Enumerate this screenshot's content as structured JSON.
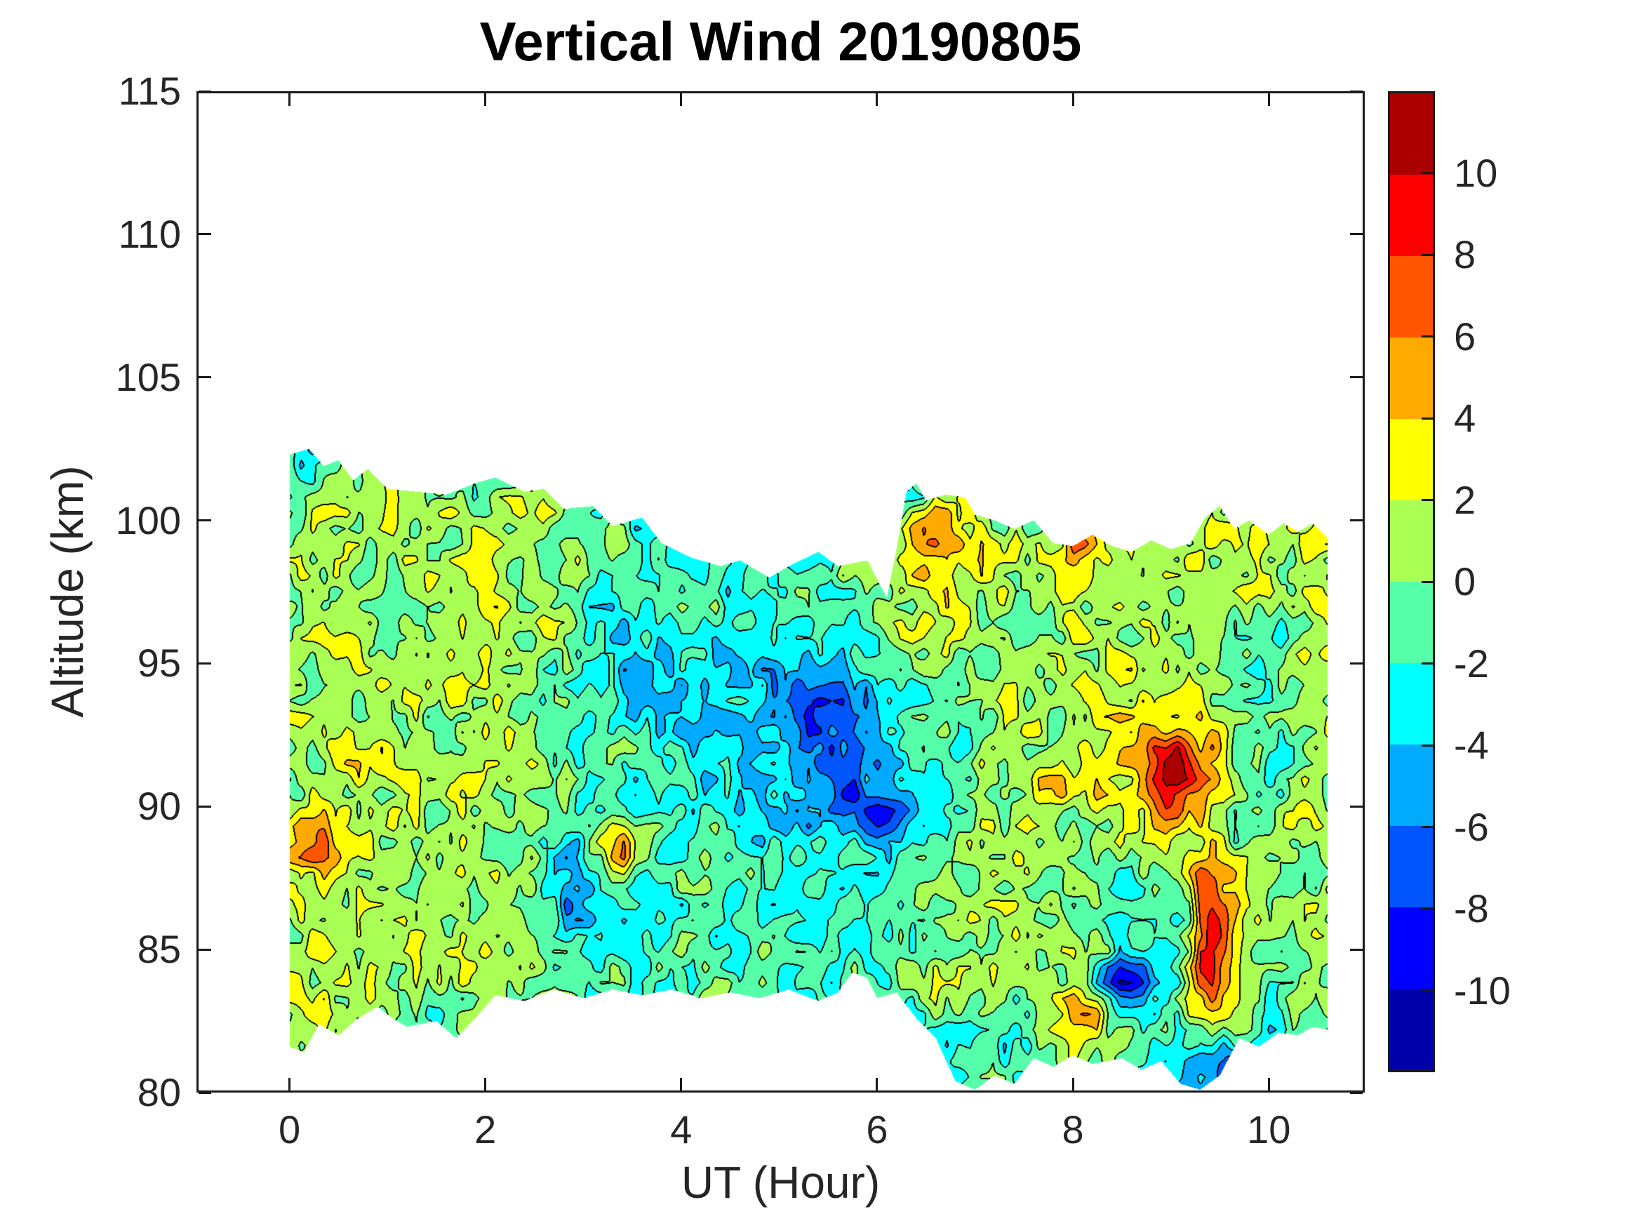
{
  "title": "Vertical Wind 20190805",
  "axes": {
    "xlabel": "UT (Hour)",
    "ylabel": "Altitude (km)",
    "xlim": [
      -0.95,
      10.98
    ],
    "ylim": [
      80,
      115
    ],
    "xticks": [
      0,
      2,
      4,
      6,
      8,
      10
    ],
    "yticks": [
      80,
      85,
      90,
      95,
      100,
      105,
      110,
      115
    ],
    "tick_color": "#262626",
    "box_on": true,
    "grid_on": false
  },
  "colorbar": {
    "position": "right",
    "ticks": [
      10,
      8,
      6,
      4,
      2,
      0,
      -2,
      -4,
      -6,
      -8,
      -10
    ],
    "value_min": -12,
    "value_max": 12
  },
  "chart_data": {
    "type": "heatmap",
    "subtype": "filled_contour",
    "title": "Vertical Wind 20190805",
    "xlabel": "UT (Hour)",
    "ylabel": "Altitude (km)",
    "contour_interval": 2,
    "value_range": [
      -12,
      12
    ],
    "level_colors": [
      "#0000AA",
      "#0000FF",
      "#0055FF",
      "#00AAFF",
      "#00FFFF",
      "#55FFAA",
      "#AAFF55",
      "#FFFF00",
      "#FFAA00",
      "#FF5500",
      "#FF0000",
      "#AA0000"
    ],
    "x_step_hours": 0.5,
    "x_start_hour": 0,
    "x_end_hour": 10.6,
    "altitudes_km": [
      103,
      102,
      101,
      100,
      99,
      98,
      97,
      96,
      95,
      94,
      93,
      92,
      91,
      90,
      89,
      88,
      87,
      86,
      85,
      84,
      83,
      82,
      81,
      80
    ],
    "values": [
      [
        -2,
        -1,
        1,
        1,
        0,
        0,
        -1,
        -2,
        -2,
        -3,
        -3,
        -3,
        -2,
        0,
        1,
        1,
        0,
        1,
        1,
        1,
        1,
        1
      ],
      [
        -2,
        0,
        1,
        1,
        0,
        -1,
        -1,
        -2,
        -2,
        -3,
        -3,
        -3,
        -2,
        0,
        1,
        1,
        0,
        1,
        1,
        1,
        1,
        1
      ],
      [
        -1,
        1,
        1,
        0,
        -1,
        1,
        0,
        -2,
        -2,
        -3,
        -3,
        -3,
        -2,
        -1,
        1,
        1,
        0,
        1,
        1,
        1,
        1,
        1
      ],
      [
        1,
        1,
        1.5,
        0.5,
        2.5,
        1,
        0.5,
        -2,
        -3,
        -3,
        -3,
        -3,
        -2,
        3,
        1,
        -1,
        2,
        1,
        0.5,
        1.5,
        1,
        2
      ],
      [
        0,
        2,
        1,
        1,
        2,
        1.5,
        0,
        -1,
        -3,
        -2,
        -3,
        -2,
        0,
        3.5,
        2,
        1,
        3.5,
        1,
        1,
        1,
        1.5,
        2
      ],
      [
        1,
        1,
        0.5,
        1,
        1.5,
        1,
        -1,
        -2,
        -2,
        -2,
        -2,
        -1,
        1,
        3,
        2,
        0,
        2.5,
        1,
        0.5,
        1,
        1,
        1.5
      ],
      [
        1,
        0.5,
        1,
        0,
        1,
        2,
        -1,
        -2,
        -1,
        -2,
        -3,
        -2,
        0,
        2.5,
        1,
        -1,
        1.5,
        1,
        0,
        0.5,
        1,
        1
      ],
      [
        0.5,
        1,
        1,
        -0.5,
        1,
        1,
        -2,
        -3,
        -2,
        -3,
        -3,
        -2,
        -1,
        1,
        0.5,
        0,
        1,
        1,
        0.5,
        0,
        -2,
        0.5
      ],
      [
        1,
        1,
        0.5,
        0,
        1.5,
        0.5,
        -2,
        -3,
        -3,
        -4,
        -4,
        -3,
        -2,
        0.5,
        1,
        1,
        1,
        2,
        1,
        0.5,
        -2.5,
        1
      ],
      [
        1,
        0.5,
        1,
        1,
        1,
        0,
        -1,
        -2,
        -4,
        -3,
        -5,
        -6,
        -3,
        0,
        1,
        0.5,
        1,
        2.5,
        1,
        1,
        -2,
        1
      ],
      [
        0.5,
        1,
        1,
        0.5,
        1,
        1,
        -1,
        -2,
        -4,
        -4,
        -5,
        -6,
        -3,
        -1,
        1,
        1,
        2,
        3,
        2,
        1,
        -1.5,
        2
      ],
      [
        1,
        1.5,
        0.5,
        1,
        0.5,
        1,
        -2,
        -1,
        -3,
        -3,
        -4,
        -7,
        -4,
        -2,
        0.5,
        1,
        2,
        2,
        5,
        1,
        -2,
        2
      ],
      [
        0.5,
        1,
        2,
        1,
        1,
        0.5,
        -1,
        -2,
        -2,
        -3,
        -4,
        -6,
        -4,
        -3,
        1,
        1.5,
        4,
        2,
        6,
        1,
        -2,
        1
      ],
      [
        1,
        0.5,
        1,
        1,
        0.5,
        1,
        -2,
        -3,
        -2,
        -2,
        -3,
        -5,
        -6,
        -4,
        0,
        1,
        2,
        1.5,
        4,
        1,
        0,
        1
      ],
      [
        2.5,
        1,
        1,
        0.5,
        1,
        0,
        -1,
        0,
        -1,
        -2,
        -3,
        -4,
        -5,
        -2,
        1,
        1,
        1.5,
        0.5,
        2,
        -2,
        0.5,
        1
      ],
      [
        3,
        1,
        0.5,
        1,
        0.5,
        1.5,
        -2,
        -1,
        -2,
        -1,
        -2,
        -2,
        -3,
        -1,
        1,
        0.5,
        1,
        -2,
        0,
        4,
        1,
        0.5
      ],
      [
        2.5,
        0.5,
        1,
        0.5,
        0,
        -1,
        -1,
        -2,
        -1,
        -2,
        -3,
        -2,
        -2,
        0,
        1,
        1,
        1,
        -2.5,
        -1,
        4,
        1,
        1
      ],
      [
        1,
        1.5,
        1,
        1,
        0.5,
        1,
        -2,
        -3,
        -2,
        -1,
        -2,
        -3,
        -1,
        -2,
        0.5,
        1,
        0,
        -3,
        -2,
        4.5,
        0.5,
        1
      ],
      [
        1,
        2,
        0.5,
        1,
        1.5,
        2,
        -1,
        -2,
        0,
        -2,
        1,
        -2,
        -2,
        -1,
        1,
        0.5,
        2,
        -1,
        -2,
        3,
        0,
        0.5
      ],
      [
        1.5,
        1,
        1,
        0.5,
        2,
        1,
        -2,
        -1,
        -1,
        0,
        -1,
        -3,
        -1,
        1,
        1,
        1,
        1.5,
        -6,
        -2,
        5,
        -1,
        0.5
      ],
      [
        1,
        3,
        0.5,
        -1,
        1,
        1.5,
        -1,
        -2,
        0,
        -1,
        -2,
        -2,
        -3,
        0,
        0.5,
        -1,
        3,
        -4,
        -1,
        2,
        -2,
        0
      ],
      [
        0.5,
        1,
        -1,
        -2,
        0.5,
        1,
        -2,
        -1,
        -1,
        -2,
        -1,
        -3,
        -2,
        -2,
        -2,
        -2,
        3,
        -1,
        -2,
        0,
        -2,
        -0.5
      ],
      [
        0,
        1,
        -1,
        -1,
        0,
        0,
        -1,
        -2,
        -2,
        -1,
        -2,
        -2,
        -2,
        -3,
        -1,
        -2,
        0,
        -1,
        -3,
        -5,
        -2,
        -1
      ],
      [
        0,
        1,
        -1,
        -1,
        0,
        0,
        -1,
        -2,
        -2,
        -1,
        -2,
        -2,
        -2,
        -3,
        -1,
        -2,
        0,
        -1,
        -3,
        -5,
        -2,
        -1
      ]
    ],
    "hotspots": [
      {
        "t": 0.35,
        "a": 88.6,
        "amp": 5,
        "rt": 0.25,
        "ra": 1.2
      },
      {
        "t": 0.75,
        "a": 91.8,
        "amp": 3,
        "rt": 0.2,
        "ra": 0.9
      },
      {
        "t": 3.4,
        "a": 88.5,
        "amp": 6,
        "rt": 0.25,
        "ra": 1.0
      },
      {
        "t": 5.8,
        "a": 88.5,
        "amp": 6,
        "rt": 0.12,
        "ra": 0.5
      },
      {
        "t": 9.1,
        "a": 91.4,
        "amp": 6,
        "rt": 0.35,
        "ra": 1.4
      },
      {
        "t": 9.38,
        "a": 86.0,
        "amp": 6,
        "rt": 0.15,
        "ra": 2.6
      },
      {
        "t": 9.38,
        "a": 84.3,
        "amp": 3,
        "rt": 0.15,
        "ra": 0.8
      },
      {
        "t": 8.05,
        "a": 98.9,
        "amp": 5,
        "rt": 0.15,
        "ra": 0.7
      },
      {
        "t": 8.2,
        "a": 82.6,
        "amp": 5,
        "rt": 0.2,
        "ra": 0.8
      },
      {
        "t": 6.6,
        "a": 99.6,
        "amp": 4,
        "rt": 0.25,
        "ra": 0.8
      },
      {
        "t": 2.9,
        "a": 87.0,
        "amp": -5,
        "rt": 0.22,
        "ra": 1.8
      },
      {
        "t": 5.85,
        "a": 90.0,
        "amp": -4,
        "rt": 0.25,
        "ra": 1.0
      },
      {
        "t": 5.55,
        "a": 93.8,
        "amp": -3,
        "rt": 0.3,
        "ra": 1.2
      },
      {
        "t": 3.45,
        "a": 94.5,
        "amp": -3,
        "rt": 0.2,
        "ra": 1.4
      },
      {
        "t": 6.9,
        "a": 92.0,
        "amp": -3,
        "rt": 0.15,
        "ra": 2.0
      },
      {
        "t": 8.5,
        "a": 83.8,
        "amp": -4,
        "rt": 0.25,
        "ra": 0.9
      },
      {
        "t": 0.15,
        "a": 101.8,
        "amp": -4,
        "rt": 0.1,
        "ra": 0.8
      },
      {
        "t": 9.6,
        "a": 80.9,
        "amp": -4,
        "rt": 0.15,
        "ra": 0.7
      }
    ],
    "mask_top": [
      [
        0,
        102.3
      ],
      [
        0.2,
        102.5
      ],
      [
        0.35,
        101.9
      ],
      [
        0.5,
        102.1
      ],
      [
        0.65,
        101.4
      ],
      [
        0.8,
        101.8
      ],
      [
        1.0,
        101.1
      ],
      [
        1.3,
        101.0
      ],
      [
        1.6,
        100.9
      ],
      [
        1.9,
        101.3
      ],
      [
        2.1,
        101.5
      ],
      [
        2.4,
        101.0
      ],
      [
        2.6,
        101.1
      ],
      [
        2.8,
        100.4
      ],
      [
        3.1,
        100.5
      ],
      [
        3.3,
        99.8
      ],
      [
        3.6,
        100.1
      ],
      [
        3.8,
        99.2
      ],
      [
        4.1,
        98.7
      ],
      [
        4.4,
        98.4
      ],
      [
        4.6,
        98.6
      ],
      [
        4.9,
        98.0
      ],
      [
        5.1,
        98.4
      ],
      [
        5.4,
        98.9
      ],
      [
        5.6,
        98.4
      ],
      [
        5.9,
        98.6
      ],
      [
        6.1,
        97.3
      ],
      [
        6.2,
        99.0
      ],
      [
        6.3,
        101.0
      ],
      [
        6.4,
        101.3
      ],
      [
        6.5,
        100.7
      ],
      [
        6.7,
        100.9
      ],
      [
        6.9,
        100.8
      ],
      [
        7.0,
        100.2
      ],
      [
        7.2,
        100.0
      ],
      [
        7.4,
        99.7
      ],
      [
        7.6,
        100.0
      ],
      [
        7.8,
        99.2
      ],
      [
        8.0,
        99.1
      ],
      [
        8.2,
        99.5
      ],
      [
        8.4,
        99.1
      ],
      [
        8.6,
        98.9
      ],
      [
        8.8,
        99.3
      ],
      [
        9.0,
        99.0
      ],
      [
        9.2,
        99.2
      ],
      [
        9.35,
        100.1
      ],
      [
        9.5,
        100.5
      ],
      [
        9.65,
        99.7
      ],
      [
        9.8,
        100.0
      ],
      [
        10.0,
        99.5
      ],
      [
        10.15,
        99.9
      ],
      [
        10.3,
        99.6
      ],
      [
        10.45,
        99.9
      ],
      [
        10.6,
        99.4
      ]
    ],
    "mask_bottom": [
      [
        0,
        81.6
      ],
      [
        0.15,
        81.4
      ],
      [
        0.3,
        82.4
      ],
      [
        0.5,
        82.0
      ],
      [
        0.7,
        82.6
      ],
      [
        0.9,
        83.0
      ],
      [
        1.05,
        82.6
      ],
      [
        1.2,
        82.3
      ],
      [
        1.5,
        82.5
      ],
      [
        1.7,
        81.9
      ],
      [
        1.9,
        82.6
      ],
      [
        2.1,
        83.4
      ],
      [
        2.4,
        83.2
      ],
      [
        2.7,
        83.6
      ],
      [
        3.0,
        83.3
      ],
      [
        3.3,
        83.6
      ],
      [
        3.6,
        83.4
      ],
      [
        3.9,
        83.6
      ],
      [
        4.2,
        83.3
      ],
      [
        4.5,
        83.5
      ],
      [
        4.8,
        83.3
      ],
      [
        5.1,
        83.6
      ],
      [
        5.4,
        83.2
      ],
      [
        5.6,
        83.5
      ],
      [
        5.75,
        84.2
      ],
      [
        5.9,
        84.0
      ],
      [
        6.0,
        83.3
      ],
      [
        6.2,
        83.5
      ],
      [
        6.4,
        82.6
      ],
      [
        6.6,
        81.9
      ],
      [
        6.8,
        80.4
      ],
      [
        7.0,
        80.1
      ],
      [
        7.2,
        80.6
      ],
      [
        7.4,
        80.3
      ],
      [
        7.6,
        81.2
      ],
      [
        7.8,
        80.9
      ],
      [
        8.0,
        81.3
      ],
      [
        8.2,
        81.0
      ],
      [
        8.5,
        81.2
      ],
      [
        8.7,
        80.8
      ],
      [
        8.9,
        81.1
      ],
      [
        9.1,
        80.3
      ],
      [
        9.3,
        80.1
      ],
      [
        9.5,
        80.6
      ],
      [
        9.7,
        81.9
      ],
      [
        9.9,
        81.6
      ],
      [
        10.1,
        82.1
      ],
      [
        10.3,
        82.0
      ],
      [
        10.45,
        82.3
      ],
      [
        10.6,
        82.2
      ]
    ]
  }
}
